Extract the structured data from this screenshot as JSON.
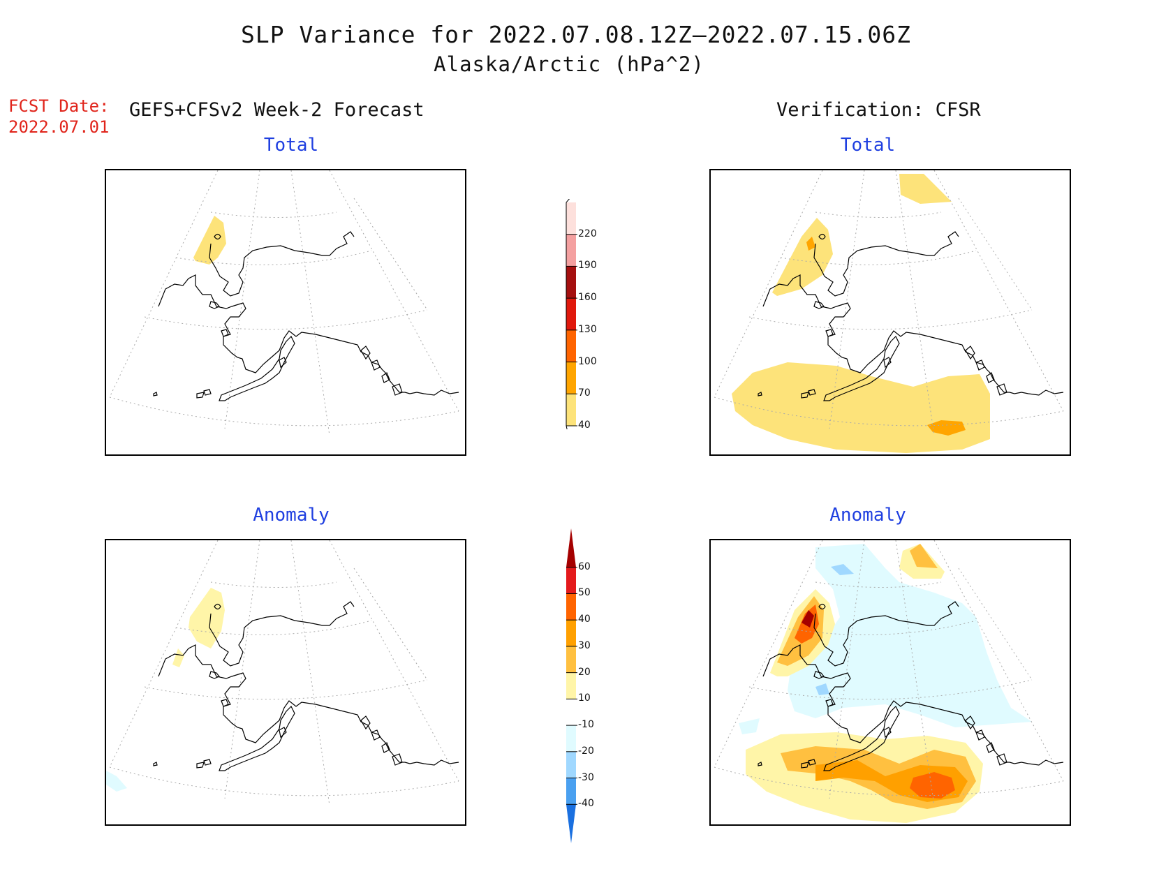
{
  "title": "SLP Variance for 2022.07.08.12Z–2022.07.15.06Z",
  "subtitle": "Alaska/Arctic (hPa^2)",
  "fcst_label": "FCST Date:",
  "fcst_date": "2022.07.01",
  "left_header": "GEFS+CFSv2 Week-2 Forecast",
  "right_header": "Verification: CFSR",
  "panels": {
    "top_left_title": "Total",
    "top_right_title": "Total",
    "bottom_left_title": "Anomaly",
    "bottom_right_title": "Anomaly"
  },
  "colorbars": {
    "total": {
      "labels": [
        "220",
        "190",
        "160",
        "130",
        "100",
        "70",
        "40"
      ],
      "colors": [
        "#fde0dc",
        "#f4a0a0",
        "#a50f0f",
        "#e0180c",
        "#ff6400",
        "#ffa500",
        "#fde37a"
      ]
    },
    "anomaly": {
      "labels": [
        "60",
        "50",
        "40",
        "30",
        "20",
        "10",
        "-10",
        "-20",
        "-30",
        "-40"
      ],
      "colors": [
        "#a50000",
        "#e41a1c",
        "#ff6400",
        "#ffa000",
        "#ffc040",
        "#fff5a8",
        "#ffffff",
        "#e0fbff",
        "#a0d8ff",
        "#4aa0f0",
        "#1a70e0"
      ]
    }
  },
  "colors": {
    "title_blue": "#1f3fe0",
    "fcst_red": "#e0241b"
  }
}
